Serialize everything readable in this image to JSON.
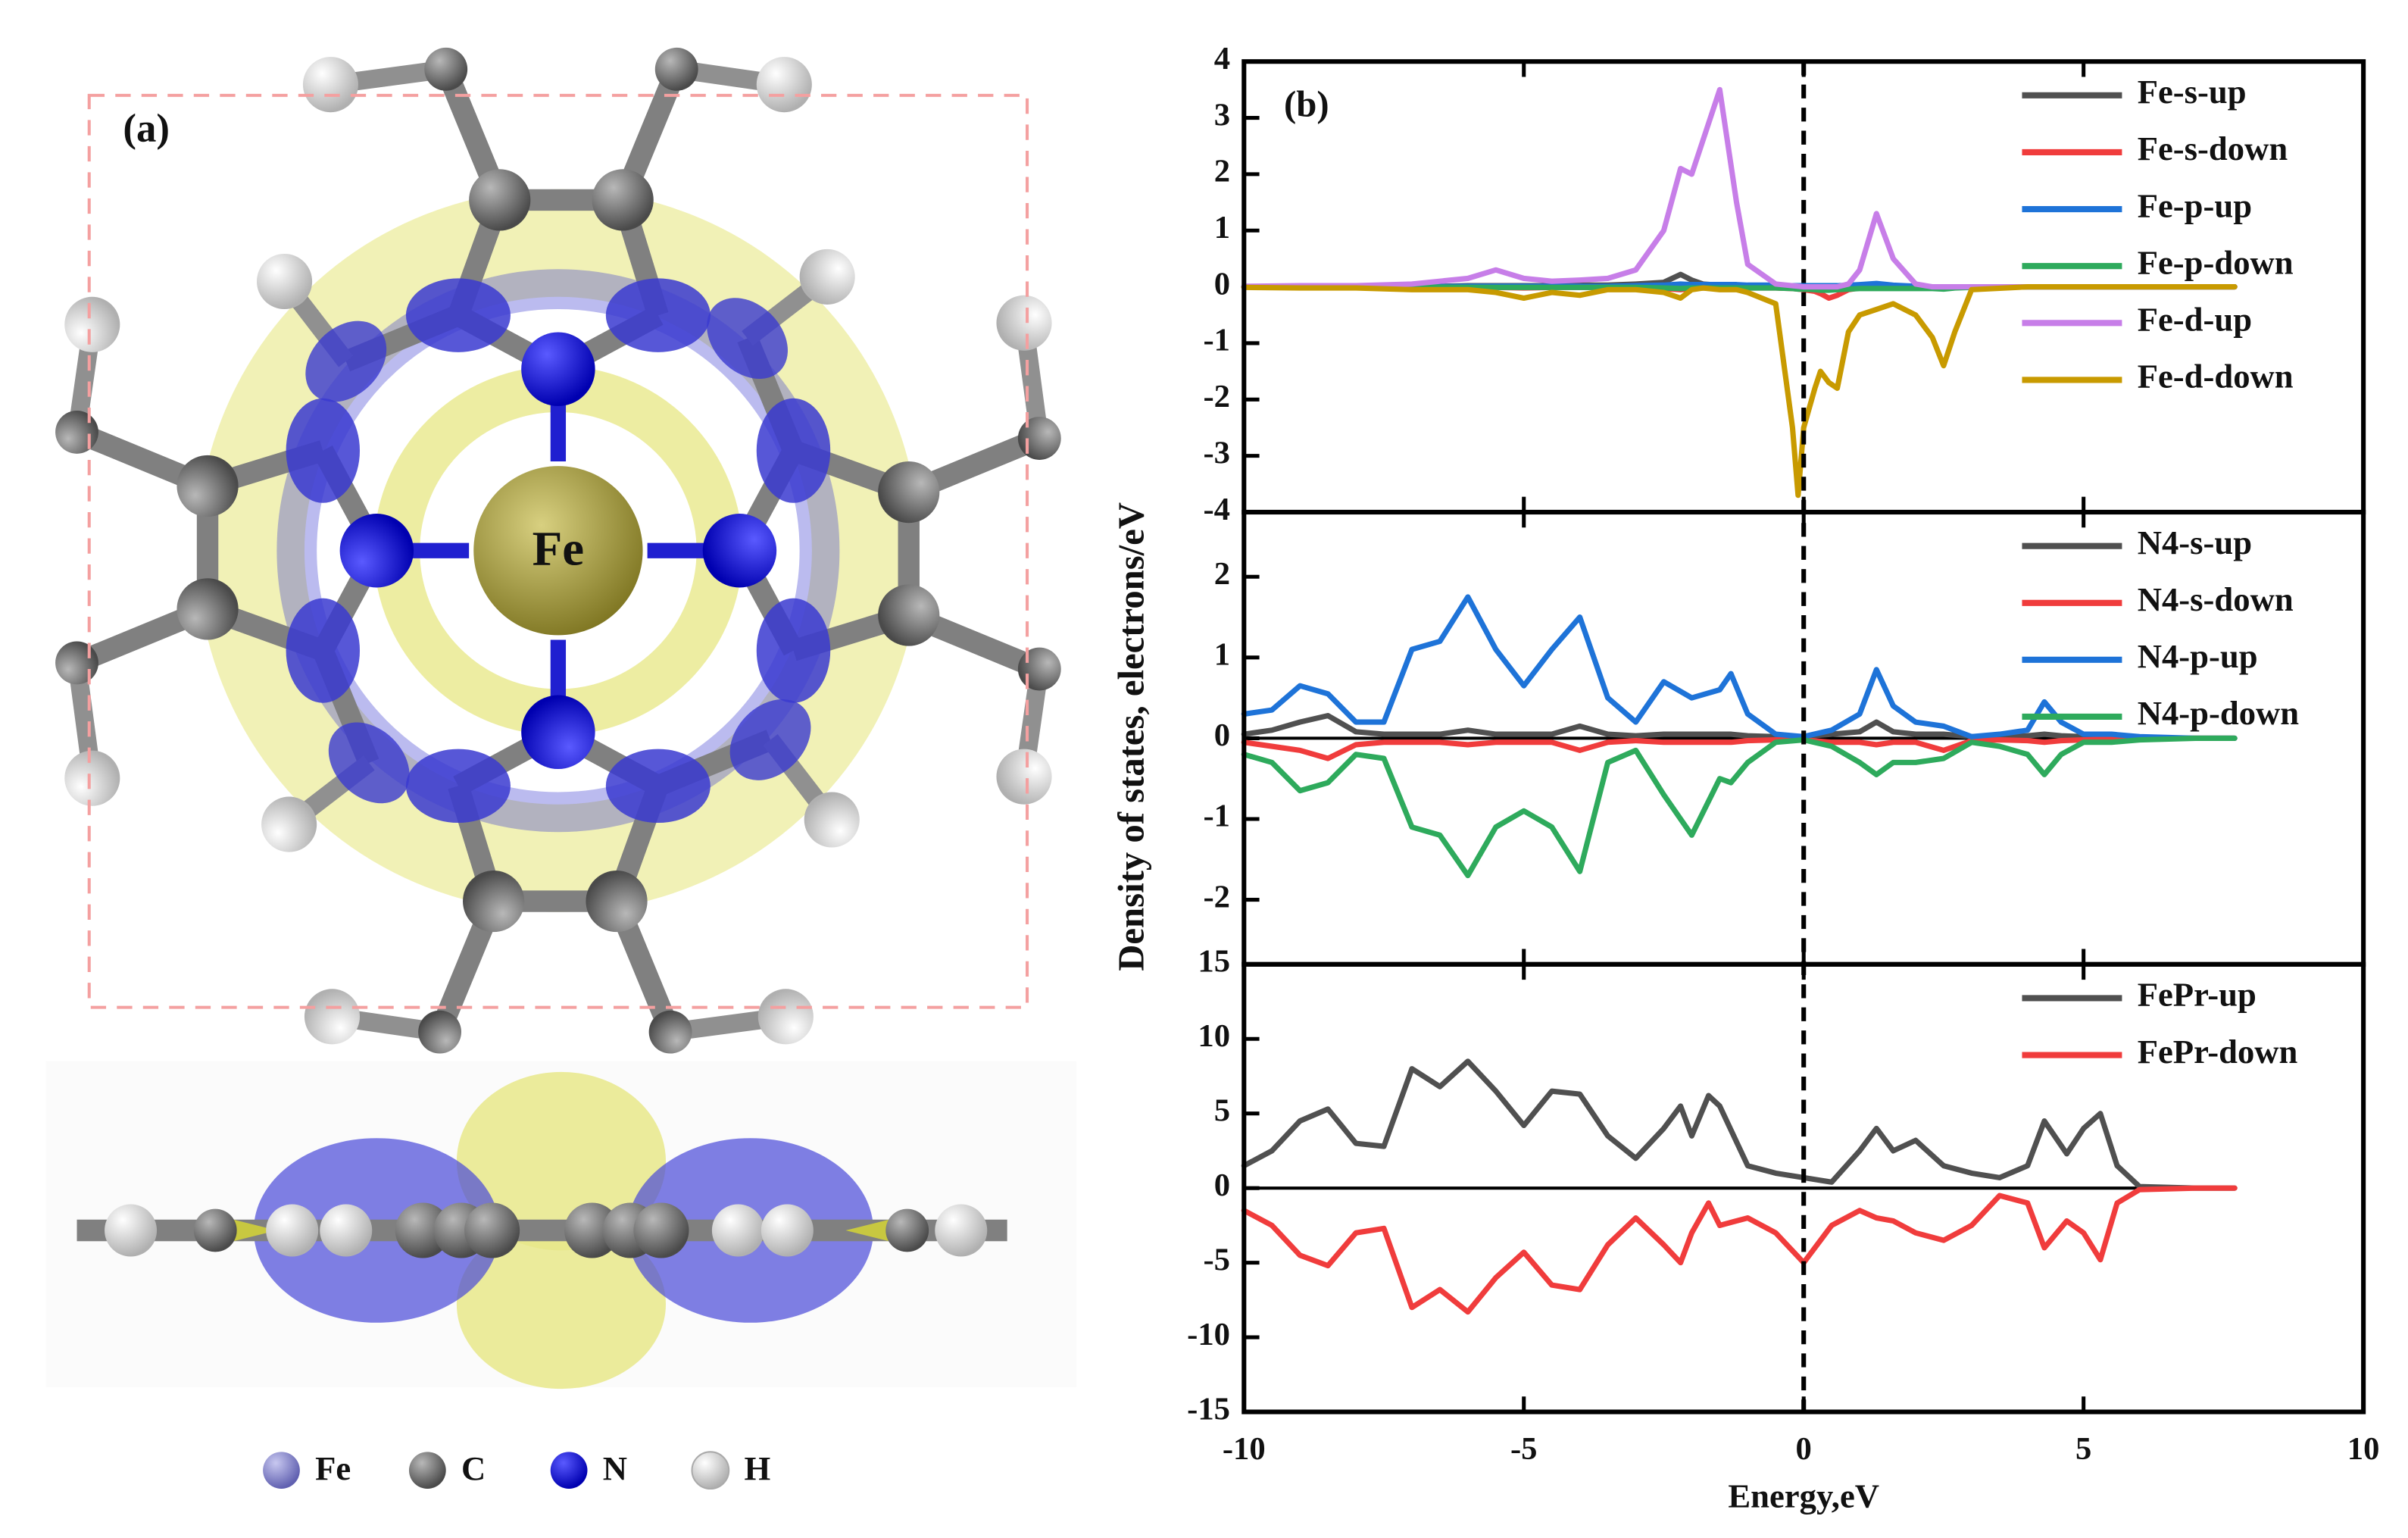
{
  "figure": {
    "panel_a_label": "(a)",
    "panel_b_label": "(b)",
    "center_label": "Fe",
    "atom_legend": [
      "Fe",
      "C",
      "N",
      "H"
    ],
    "y_label": "Density of states, electrons/eV"
  },
  "chart_data": [
    {
      "type": "line",
      "xlim": [
        -10,
        10
      ],
      "ylim": [
        -4,
        4
      ],
      "yticks": [
        -4,
        -3,
        -2,
        -1,
        0,
        1,
        2,
        3,
        4
      ],
      "legend": "upper right",
      "x": [
        -10,
        -9,
        -8,
        -7,
        -6,
        -5.5,
        -5,
        -4.5,
        -4,
        -3.5,
        -3,
        -2.5,
        -2.2,
        -2,
        -1.8,
        -1.5,
        -1.2,
        -1,
        -0.5,
        -0.2,
        -0.1,
        0,
        0.2,
        0.3,
        0.45,
        0.6,
        0.8,
        1,
        1.3,
        1.6,
        2,
        2.3,
        2.5,
        2.7,
        3,
        4,
        5,
        6,
        7,
        7.7
      ],
      "series": [
        {
          "name": "Fe-s-up",
          "color": "#505050",
          "values": [
            0,
            0,
            0,
            0,
            0.02,
            0.02,
            0.02,
            0.02,
            0.03,
            0.03,
            0.05,
            0.08,
            0.22,
            0.12,
            0.05,
            0.03,
            0.02,
            0.02,
            0.01,
            0,
            0,
            0,
            0,
            0,
            0,
            0,
            0,
            0,
            0.02,
            0.01,
            0,
            0,
            0,
            0,
            0,
            0,
            0,
            0,
            0,
            0
          ]
        },
        {
          "name": "Fe-s-down",
          "color": "#f03c3c",
          "values": [
            0,
            0,
            0,
            0,
            -0.01,
            -0.01,
            -0.02,
            -0.01,
            -0.01,
            -0.01,
            -0.02,
            -0.03,
            -0.05,
            -0.03,
            -0.02,
            -0.02,
            -0.02,
            -0.02,
            -0.02,
            -0.03,
            -0.04,
            -0.05,
            -0.08,
            -0.12,
            -0.2,
            -0.15,
            -0.05,
            -0.02,
            -0.02,
            -0.01,
            0,
            0,
            0,
            0,
            0,
            0,
            0,
            0,
            0,
            0
          ]
        },
        {
          "name": "Fe-p-up",
          "color": "#1e73d8",
          "values": [
            0,
            0,
            0,
            0,
            0.01,
            0.01,
            0.01,
            0.01,
            0.01,
            0.01,
            0.02,
            0.03,
            0.05,
            0.04,
            0.04,
            0.04,
            0.04,
            0.03,
            0.03,
            0.02,
            0.02,
            0.02,
            0.02,
            0.02,
            0.02,
            0.02,
            0.03,
            0.04,
            0.06,
            0.03,
            0.01,
            0,
            0,
            0,
            0,
            0,
            0,
            0,
            0,
            0
          ]
        },
        {
          "name": "Fe-p-down",
          "color": "#2eaa5c",
          "values": [
            0,
            0,
            0,
            0,
            -0.01,
            -0.01,
            -0.01,
            -0.01,
            -0.01,
            -0.01,
            -0.01,
            -0.02,
            -0.03,
            -0.02,
            -0.02,
            -0.02,
            -0.02,
            -0.02,
            -0.02,
            -0.03,
            -0.04,
            -0.04,
            -0.05,
            -0.06,
            -0.06,
            -0.05,
            -0.04,
            -0.03,
            -0.03,
            -0.03,
            -0.03,
            -0.03,
            -0.04,
            -0.02,
            -0.01,
            0,
            0,
            0,
            0,
            0
          ]
        },
        {
          "name": "Fe-d-up",
          "color": "#c77ee8",
          "values": [
            0.01,
            0.02,
            0.02,
            0.05,
            0.15,
            0.3,
            0.15,
            0.1,
            0.12,
            0.15,
            0.3,
            1.0,
            2.1,
            2.0,
            2.6,
            3.5,
            1.5,
            0.4,
            0.05,
            0.02,
            0.01,
            0,
            0,
            0,
            0,
            0,
            0.05,
            0.3,
            1.3,
            0.5,
            0.05,
            0,
            0,
            0,
            0,
            0,
            0,
            0,
            0,
            0
          ]
        },
        {
          "name": "Fe-d-down",
          "color": "#c89a00",
          "values": [
            -0.01,
            -0.02,
            -0.02,
            -0.05,
            -0.05,
            -0.1,
            -0.2,
            -0.1,
            -0.15,
            -0.05,
            -0.05,
            -0.1,
            -0.2,
            -0.05,
            -0.02,
            -0.05,
            -0.05,
            -0.1,
            -0.3,
            -2.5,
            -3.7,
            -2.5,
            -1.8,
            -1.5,
            -1.7,
            -1.8,
            -0.8,
            -0.5,
            -0.4,
            -0.3,
            -0.5,
            -0.9,
            -1.4,
            -0.8,
            -0.05,
            0,
            0,
            0,
            0,
            0
          ]
        }
      ]
    },
    {
      "type": "line",
      "xlim": [
        -10,
        10
      ],
      "ylim": [
        -2.8,
        2.8
      ],
      "yticks": [
        -2,
        -1,
        0,
        1,
        2
      ],
      "legend": "upper right",
      "x": [
        -10,
        -9.5,
        -9,
        -8.5,
        -8,
        -7.5,
        -7,
        -6.5,
        -6,
        -5.5,
        -5,
        -4.5,
        -4,
        -3.5,
        -3,
        -2.5,
        -2,
        -1.5,
        -1.3,
        -1,
        -0.5,
        0,
        0.5,
        1,
        1.3,
        1.6,
        2,
        2.5,
        3,
        3.5,
        4,
        4.3,
        4.6,
        5,
        5.5,
        6,
        7,
        7.7
      ],
      "series": [
        {
          "name": "N4-s-up",
          "color": "#505050",
          "values": [
            0.05,
            0.1,
            0.2,
            0.28,
            0.08,
            0.05,
            0.05,
            0.05,
            0.1,
            0.05,
            0.05,
            0.05,
            0.15,
            0.05,
            0.03,
            0.05,
            0.05,
            0.05,
            0.05,
            0.03,
            0.02,
            0.02,
            0.05,
            0.08,
            0.2,
            0.08,
            0.05,
            0.05,
            0.02,
            0.02,
            0.03,
            0.05,
            0.03,
            0.02,
            0.01,
            0,
            0,
            0
          ]
        },
        {
          "name": "N4-s-down",
          "color": "#f03c3c",
          "values": [
            -0.05,
            -0.1,
            -0.15,
            -0.25,
            -0.08,
            -0.05,
            -0.05,
            -0.05,
            -0.08,
            -0.05,
            -0.05,
            -0.05,
            -0.15,
            -0.05,
            -0.03,
            -0.05,
            -0.05,
            -0.05,
            -0.05,
            -0.03,
            -0.02,
            -0.02,
            -0.05,
            -0.05,
            -0.08,
            -0.05,
            -0.05,
            -0.15,
            -0.03,
            -0.02,
            -0.03,
            -0.05,
            -0.03,
            -0.02,
            -0.01,
            0,
            0,
            0
          ]
        },
        {
          "name": "N4-p-up",
          "color": "#1e73d8",
          "values": [
            0.3,
            0.35,
            0.65,
            0.55,
            0.2,
            0.2,
            1.1,
            1.2,
            1.75,
            1.1,
            0.65,
            1.1,
            1.5,
            0.5,
            0.2,
            0.7,
            0.5,
            0.6,
            0.8,
            0.3,
            0.05,
            0.02,
            0.1,
            0.3,
            0.85,
            0.4,
            0.2,
            0.15,
            0.02,
            0.05,
            0.1,
            0.45,
            0.2,
            0.05,
            0.05,
            0.02,
            0,
            0
          ]
        },
        {
          "name": "N4-p-down",
          "color": "#2eaa5c",
          "values": [
            -0.2,
            -0.3,
            -0.65,
            -0.55,
            -0.2,
            -0.25,
            -1.1,
            -1.2,
            -1.7,
            -1.1,
            -0.9,
            -1.1,
            -1.65,
            -0.3,
            -0.15,
            -0.7,
            -1.2,
            -0.5,
            -0.55,
            -0.3,
            -0.05,
            -0.02,
            -0.1,
            -0.3,
            -0.45,
            -0.3,
            -0.3,
            -0.25,
            -0.05,
            -0.1,
            -0.2,
            -0.45,
            -0.2,
            -0.05,
            -0.05,
            -0.02,
            0,
            0
          ]
        }
      ]
    },
    {
      "type": "line",
      "xlim": [
        -10,
        10
      ],
      "ylim": [
        -15,
        15
      ],
      "yticks": [
        -15,
        -10,
        -5,
        0,
        5,
        10,
        15
      ],
      "xticks": [
        -10,
        -5,
        0,
        5,
        10
      ],
      "x_label": "Energy,eV",
      "legend": "upper right",
      "x": [
        -10,
        -9.5,
        -9,
        -8.5,
        -8,
        -7.5,
        -7,
        -6.5,
        -6,
        -5.5,
        -5,
        -4.5,
        -4,
        -3.5,
        -3,
        -2.5,
        -2.2,
        -2,
        -1.7,
        -1.5,
        -1,
        -0.5,
        0,
        0.5,
        1,
        1.3,
        1.6,
        2,
        2.5,
        3,
        3.5,
        4,
        4.3,
        4.7,
        5,
        5.3,
        5.6,
        6,
        7,
        7.7
      ],
      "series": [
        {
          "name": "FePr-up",
          "color": "#505050",
          "values": [
            1.5,
            2.5,
            4.5,
            5.3,
            3,
            2.8,
            8,
            6.8,
            8.5,
            6.5,
            4.2,
            6.5,
            6.3,
            3.5,
            2,
            4,
            5.5,
            3.5,
            6.2,
            5.5,
            1.5,
            1,
            0.7,
            0.4,
            2.5,
            4,
            2.5,
            3.2,
            1.5,
            1,
            0.7,
            1.5,
            4.5,
            2.3,
            4,
            5,
            1.5,
            0.1,
            0,
            0
          ]
        },
        {
          "name": "FePr-down",
          "color": "#f03c3c",
          "values": [
            -1.5,
            -2.5,
            -4.5,
            -5.2,
            -3,
            -2.7,
            -8,
            -6.8,
            -8.3,
            -6,
            -4.3,
            -6.5,
            -6.8,
            -3.8,
            -2,
            -3.8,
            -5,
            -3,
            -1,
            -2.5,
            -2,
            -3,
            -5,
            -2.5,
            -1.5,
            -2,
            -2.2,
            -3,
            -3.5,
            -2.5,
            -0.5,
            -1,
            -4,
            -2.2,
            -3,
            -4.8,
            -1,
            -0.1,
            0,
            0
          ]
        }
      ]
    }
  ]
}
